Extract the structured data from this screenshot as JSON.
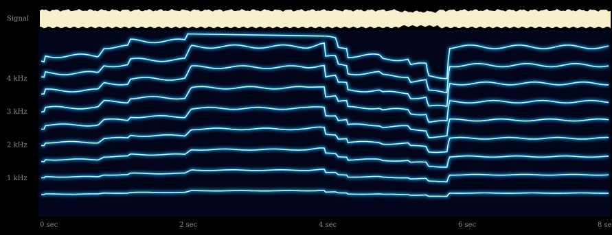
{
  "colors": {
    "background": "#000000",
    "panel": "#03051a",
    "signal": "#f7f0cc",
    "harmonic_core": "#c8fbff",
    "harmonic_glow": "#0e8fd8",
    "label": "#8a8a8a"
  },
  "chart_data": {
    "type": "spectrogram",
    "signal_label": "Signal",
    "y_ticks": [
      {
        "value": 1,
        "label": "1 kHz"
      },
      {
        "value": 2,
        "label": "2 kHz"
      },
      {
        "value": 3,
        "label": "3 kHz"
      },
      {
        "value": 4,
        "label": "4 kHz"
      }
    ],
    "x_ticks": [
      {
        "value": 0,
        "label": "0  sec"
      },
      {
        "value": 2,
        "label": "2  sec"
      },
      {
        "value": 4,
        "label": "4  sec"
      },
      {
        "value": 6,
        "label": "6  sec"
      },
      {
        "value": 8,
        "label": "8  sec"
      }
    ],
    "xlim": [
      0,
      8.4
    ],
    "ylim": [
      0,
      5.0
    ],
    "harmonics": 9,
    "fundamental_contour": [
      {
        "t": 0.0,
        "f": 0.5
      },
      {
        "t": 0.05,
        "f": 0.52
      },
      {
        "t": 0.9,
        "f": 0.55
      },
      {
        "t": 1.28,
        "f": 0.57
      },
      {
        "t": 2.15,
        "f": 0.62
      },
      {
        "t": 4.0,
        "f": 0.63
      },
      {
        "t": 4.08,
        "f": 0.58
      },
      {
        "t": 4.25,
        "f": 0.55
      },
      {
        "t": 4.4,
        "f": 0.52
      },
      {
        "t": 4.9,
        "f": 0.51
      },
      {
        "t": 5.3,
        "f": 0.49
      },
      {
        "t": 5.55,
        "f": 0.45
      },
      {
        "t": 5.85,
        "f": 0.55
      },
      {
        "t": 8.4,
        "f": 0.55
      }
    ]
  }
}
